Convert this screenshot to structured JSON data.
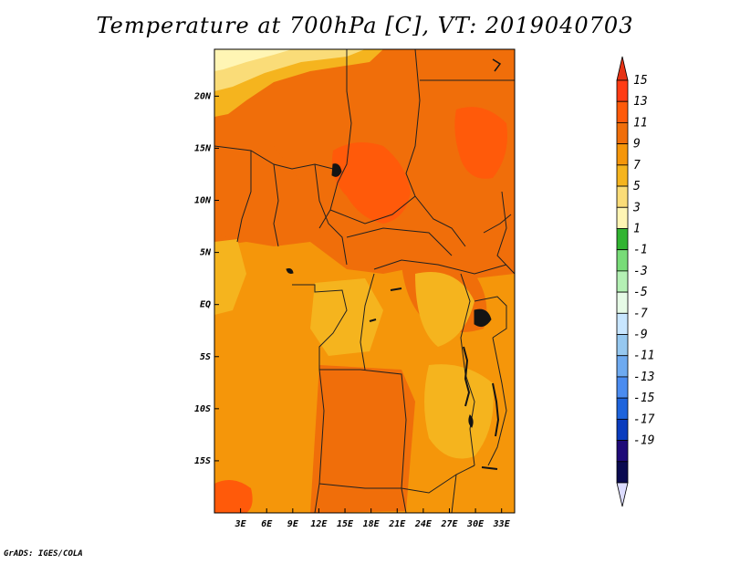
{
  "title": "Temperature at 700hPa [C], VT: 2019040703",
  "credit": "GrADS: IGES/COLA",
  "map": {
    "lon_range": [
      0,
      34.5
    ],
    "lat_range": [
      -20,
      24.5
    ],
    "lon_ticks": [
      {
        "value": 3,
        "label": "3E"
      },
      {
        "value": 6,
        "label": "6E"
      },
      {
        "value": 9,
        "label": "9E"
      },
      {
        "value": 12,
        "label": "12E"
      },
      {
        "value": 15,
        "label": "15E"
      },
      {
        "value": 18,
        "label": "18E"
      },
      {
        "value": 21,
        "label": "21E"
      },
      {
        "value": 24,
        "label": "24E"
      },
      {
        "value": 27,
        "label": "27E"
      },
      {
        "value": 30,
        "label": "30E"
      },
      {
        "value": 33,
        "label": "33E"
      }
    ],
    "lat_ticks": [
      {
        "value": 20,
        "label": "20N"
      },
      {
        "value": 15,
        "label": "15N"
      },
      {
        "value": 10,
        "label": "10N"
      },
      {
        "value": 5,
        "label": "5N"
      },
      {
        "value": 0,
        "label": "EQ"
      },
      {
        "value": -5,
        "label": "5S"
      },
      {
        "value": -10,
        "label": "10S"
      },
      {
        "value": -15,
        "label": "15S"
      }
    ]
  },
  "colorbar": {
    "labels": [
      "15",
      "13",
      "11",
      "9",
      "7",
      "5",
      "3",
      "1",
      "-1",
      "-3",
      "-5",
      "-7",
      "-9",
      "-11",
      "-13",
      "-15",
      "-17",
      "-19"
    ],
    "colors": [
      "#ff3c14",
      "#ff5a0a",
      "#f06e0a",
      "#f5960a",
      "#f5b41e",
      "#fadc78",
      "#fff5b4",
      "#32b432",
      "#78dc78",
      "#b4f0b4",
      "#e6fae6",
      "#c8e6ff",
      "#96c8f0",
      "#6eaaf0",
      "#4b8cf0",
      "#1e64dc",
      "#0a3cbe",
      "#1e0a78",
      "#0a0a50"
    ],
    "top_arrow_color": "#e63214",
    "bottom_arrow_color": "#dcdcff"
  },
  "colors": {
    "base": "#f5960a",
    "warm": "#f06e0a",
    "hot": "#ff5a0a",
    "mild": "#f5b41e",
    "cool": "#fadc78",
    "pale": "#fff5b4",
    "water": "#141414"
  }
}
